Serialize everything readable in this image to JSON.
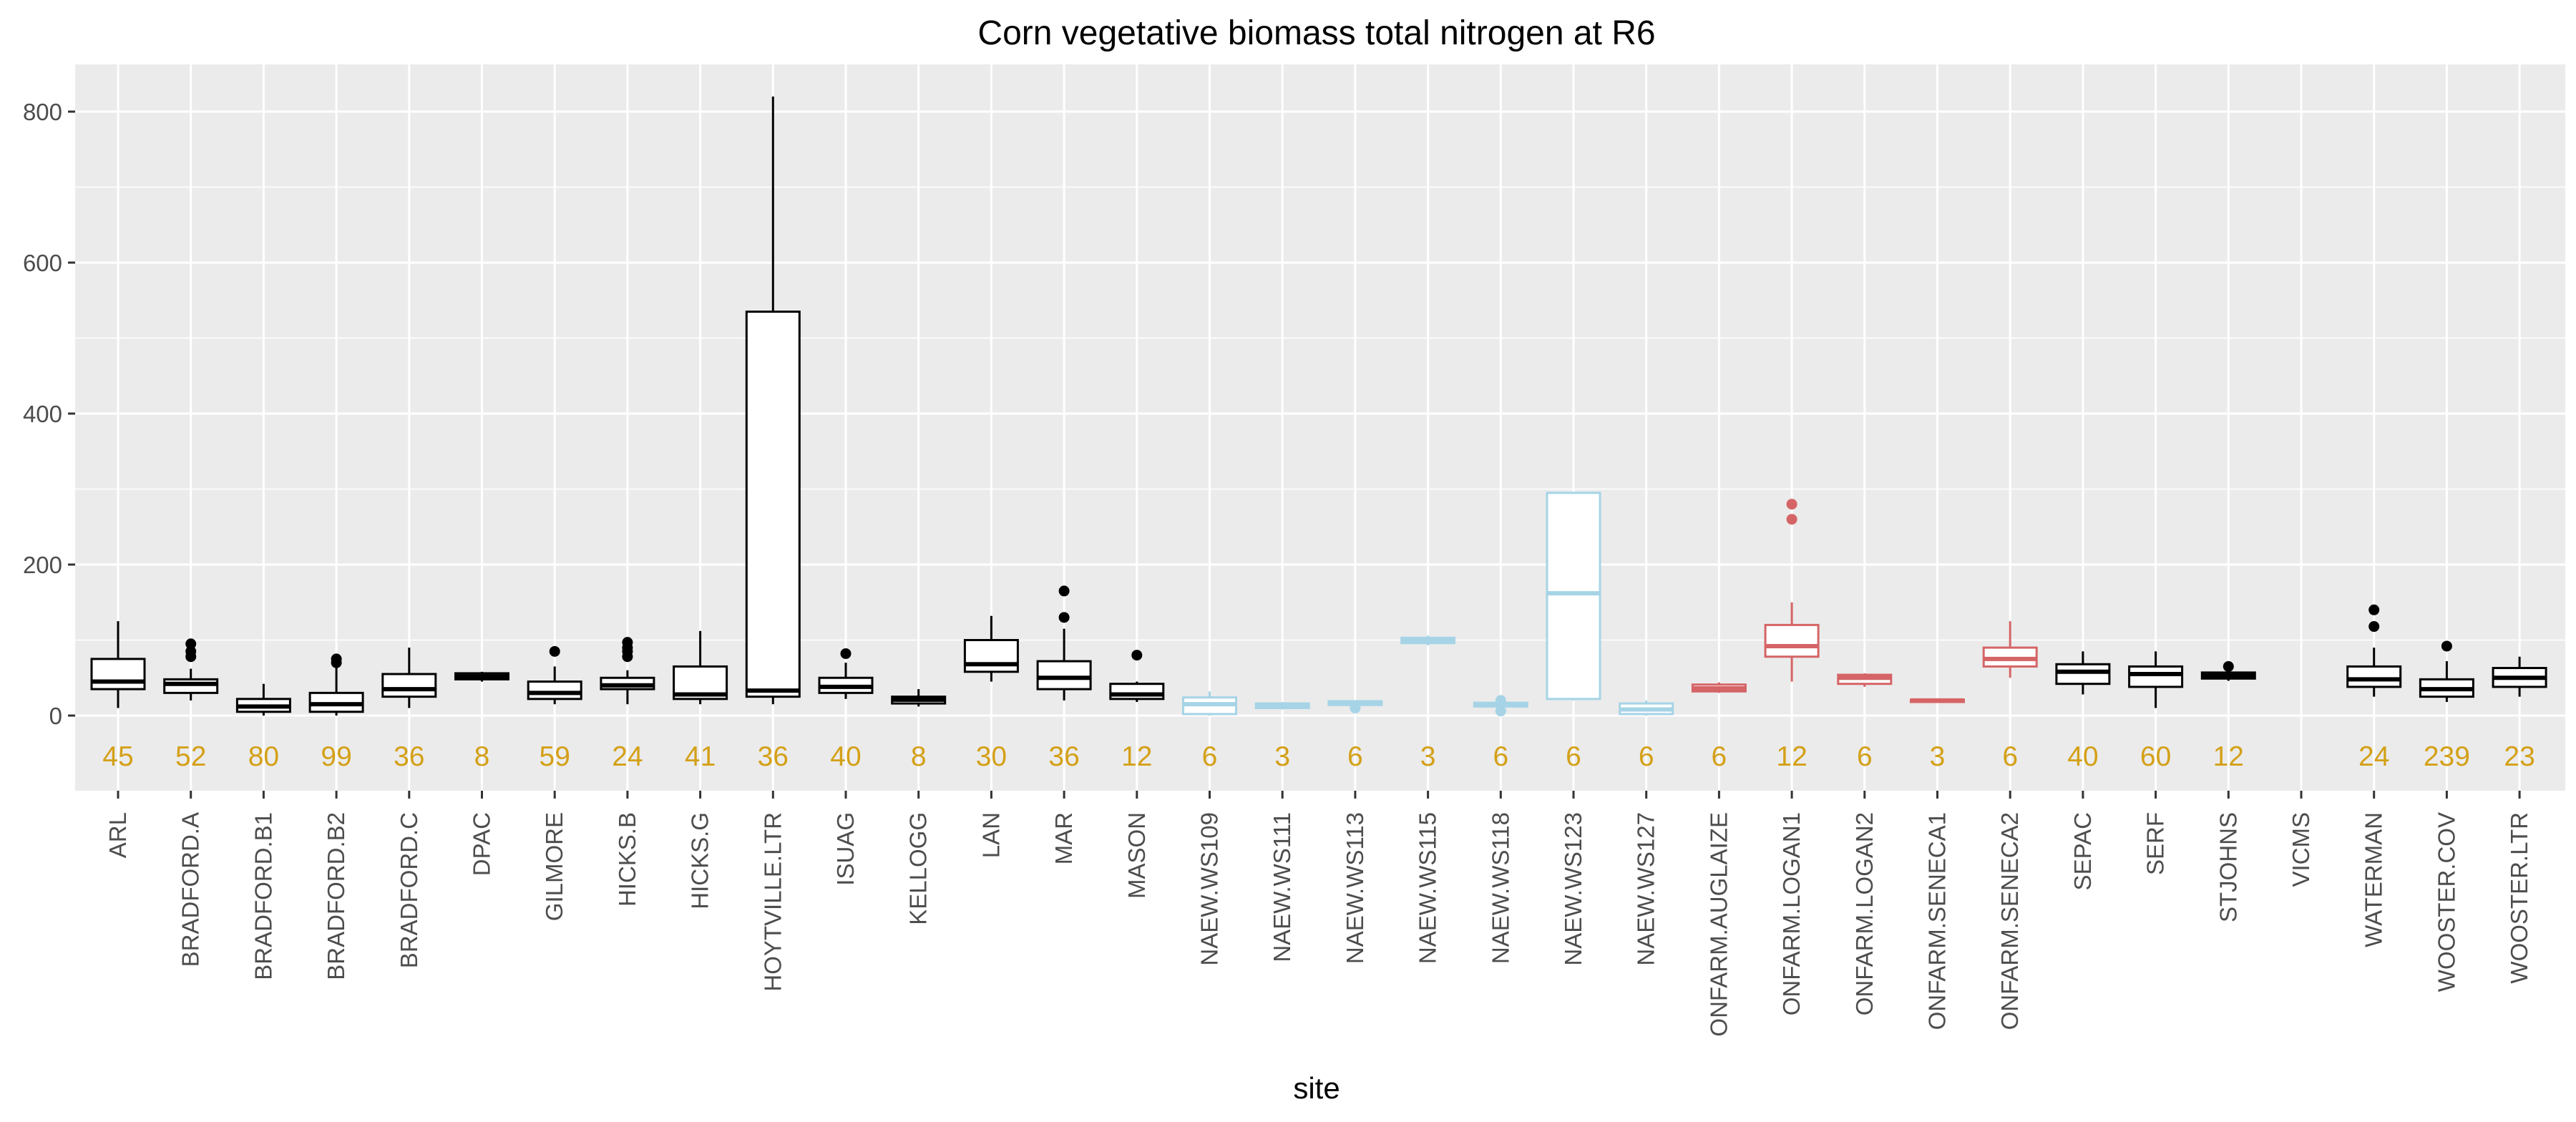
{
  "chart_data": {
    "type": "boxplot",
    "title": "Corn vegetative biomass total nitrogen at R6",
    "xlabel": "site",
    "ylabel": "",
    "ylim": [
      -100,
      860
    ],
    "yticks": [
      0,
      200,
      400,
      600,
      800
    ],
    "grid": true,
    "count_label_color": "#D4A017",
    "panel_background": "#EBEBEB",
    "color_groups": {
      "default": "#000000",
      "NAEW": "#A6D4E6",
      "ONFARM": "#D56466"
    },
    "sites": [
      {
        "name": "ARL",
        "group": "default",
        "count": "45",
        "min": 10,
        "q1": 35,
        "median": 45,
        "q3": 75,
        "max": 125,
        "outliers": []
      },
      {
        "name": "BRADFORD.A",
        "group": "default",
        "count": "52",
        "min": 20,
        "q1": 30,
        "median": 42,
        "q3": 48,
        "max": 62,
        "outliers": [
          78,
          85,
          95
        ]
      },
      {
        "name": "BRADFORD.B1",
        "group": "default",
        "count": "80",
        "min": 0,
        "q1": 5,
        "median": 12,
        "q3": 22,
        "max": 42,
        "outliers": []
      },
      {
        "name": "BRADFORD.B2",
        "group": "default",
        "count": "99",
        "min": 0,
        "q1": 5,
        "median": 15,
        "q3": 30,
        "max": 65,
        "outliers": [
          70,
          75
        ]
      },
      {
        "name": "BRADFORD.C",
        "group": "default",
        "count": "36",
        "min": 10,
        "q1": 25,
        "median": 35,
        "q3": 55,
        "max": 90,
        "outliers": []
      },
      {
        "name": "DPAC",
        "group": "default",
        "count": "8",
        "min": 45,
        "q1": 48,
        "median": 52,
        "q3": 56,
        "max": 58,
        "outliers": []
      },
      {
        "name": "GILMORE",
        "group": "default",
        "count": "59",
        "min": 15,
        "q1": 22,
        "median": 30,
        "q3": 45,
        "max": 65,
        "outliers": [
          85
        ]
      },
      {
        "name": "HICKS.B",
        "group": "default",
        "count": "24",
        "min": 15,
        "q1": 35,
        "median": 40,
        "q3": 50,
        "max": 60,
        "outliers": [
          78,
          85,
          90,
          97
        ]
      },
      {
        "name": "HICKS.G",
        "group": "default",
        "count": "41",
        "min": 15,
        "q1": 22,
        "median": 28,
        "q3": 65,
        "max": 112,
        "outliers": []
      },
      {
        "name": "HOYTVILLE.LTR",
        "group": "default",
        "count": "36",
        "min": 15,
        "q1": 25,
        "median": 33,
        "q3": 535,
        "max": 820,
        "outliers": []
      },
      {
        "name": "ISUAG",
        "group": "default",
        "count": "40",
        "min": 22,
        "q1": 30,
        "median": 38,
        "q3": 50,
        "max": 70,
        "outliers": [
          82
        ]
      },
      {
        "name": "KELLOGG",
        "group": "default",
        "count": "8",
        "min": 12,
        "q1": 16,
        "median": 21,
        "q3": 25,
        "max": 35,
        "outliers": []
      },
      {
        "name": "LAN",
        "group": "default",
        "count": "30",
        "min": 45,
        "q1": 58,
        "median": 68,
        "q3": 100,
        "max": 132,
        "outliers": []
      },
      {
        "name": "MAR",
        "group": "default",
        "count": "36",
        "min": 20,
        "q1": 35,
        "median": 50,
        "q3": 72,
        "max": 115,
        "outliers": [
          130,
          165
        ]
      },
      {
        "name": "MASON",
        "group": "default",
        "count": "12",
        "min": 18,
        "q1": 22,
        "median": 28,
        "q3": 42,
        "max": 45,
        "outliers": [
          80
        ]
      },
      {
        "name": "NAEW.WS109",
        "group": "NAEW",
        "count": "6",
        "min": 0,
        "q1": 2,
        "median": 15,
        "q3": 24,
        "max": 32,
        "outliers": []
      },
      {
        "name": "NAEW.WS111",
        "group": "NAEW",
        "count": "3",
        "min": 8,
        "q1": 10,
        "median": 13,
        "q3": 16,
        "max": 18,
        "outliers": []
      },
      {
        "name": "NAEW.WS113",
        "group": "NAEW",
        "count": "6",
        "min": 10,
        "q1": 14,
        "median": 17,
        "q3": 19,
        "max": 20,
        "outliers": [
          10
        ]
      },
      {
        "name": "NAEW.WS115",
        "group": "NAEW",
        "count": "3",
        "min": 93,
        "q1": 96,
        "median": 100,
        "q3": 103,
        "max": 106,
        "outliers": []
      },
      {
        "name": "NAEW.WS118",
        "group": "NAEW",
        "count": "6",
        "min": 10,
        "q1": 12,
        "median": 15,
        "q3": 17,
        "max": 18,
        "outliers": [
          6,
          20
        ]
      },
      {
        "name": "NAEW.WS123",
        "group": "NAEW",
        "count": "6",
        "min": 20,
        "q1": 22,
        "median": 162,
        "q3": 295,
        "max": 295,
        "outliers": []
      },
      {
        "name": "NAEW.WS127",
        "group": "NAEW",
        "count": "6",
        "min": 0,
        "q1": 2,
        "median": 8,
        "q3": 16,
        "max": 20,
        "outliers": []
      },
      {
        "name": "ONFARM.AUGLAIZE",
        "group": "ONFARM",
        "count": "6",
        "min": 30,
        "q1": 32,
        "median": 36,
        "q3": 41,
        "max": 44,
        "outliers": []
      },
      {
        "name": "ONFARM.LOGAN1",
        "group": "ONFARM",
        "count": "12",
        "min": 45,
        "q1": 78,
        "median": 92,
        "q3": 120,
        "max": 150,
        "outliers": [
          260,
          280
        ]
      },
      {
        "name": "ONFARM.LOGAN2",
        "group": "ONFARM",
        "count": "6",
        "min": 38,
        "q1": 42,
        "median": 50,
        "q3": 54,
        "max": 56,
        "outliers": []
      },
      {
        "name": "ONFARM.SENECA1",
        "group": "ONFARM",
        "count": "3",
        "min": 17,
        "q1": 18,
        "median": 20,
        "q3": 21,
        "max": 22,
        "outliers": []
      },
      {
        "name": "ONFARM.SENECA2",
        "group": "ONFARM",
        "count": "6",
        "min": 50,
        "q1": 65,
        "median": 75,
        "q3": 90,
        "max": 125,
        "outliers": []
      },
      {
        "name": "SEPAC",
        "group": "default",
        "count": "40",
        "min": 28,
        "q1": 42,
        "median": 58,
        "q3": 68,
        "max": 85,
        "outliers": []
      },
      {
        "name": "SERF",
        "group": "default",
        "count": "60",
        "min": 10,
        "q1": 38,
        "median": 55,
        "q3": 65,
        "max": 85,
        "outliers": []
      },
      {
        "name": "STJOHNS",
        "group": "default",
        "count": "12",
        "min": 46,
        "q1": 49,
        "median": 53,
        "q3": 57,
        "max": 60,
        "outliers": [
          65
        ]
      },
      {
        "name": "VICMS",
        "group": "default",
        "count": "",
        "min": null,
        "q1": null,
        "median": null,
        "q3": null,
        "max": null,
        "outliers": []
      },
      {
        "name": "WATERMAN",
        "group": "default",
        "count": "24",
        "min": 25,
        "q1": 38,
        "median": 48,
        "q3": 65,
        "max": 90,
        "outliers": [
          118,
          140
        ]
      },
      {
        "name": "WOOSTER.COV",
        "group": "default",
        "count": "239",
        "min": 18,
        "q1": 25,
        "median": 35,
        "q3": 48,
        "max": 72,
        "outliers": [
          92
        ]
      },
      {
        "name": "WOOSTER.LTR",
        "group": "default",
        "count": "23",
        "min": 25,
        "q1": 38,
        "median": 50,
        "q3": 63,
        "max": 78,
        "outliers": []
      }
    ]
  }
}
